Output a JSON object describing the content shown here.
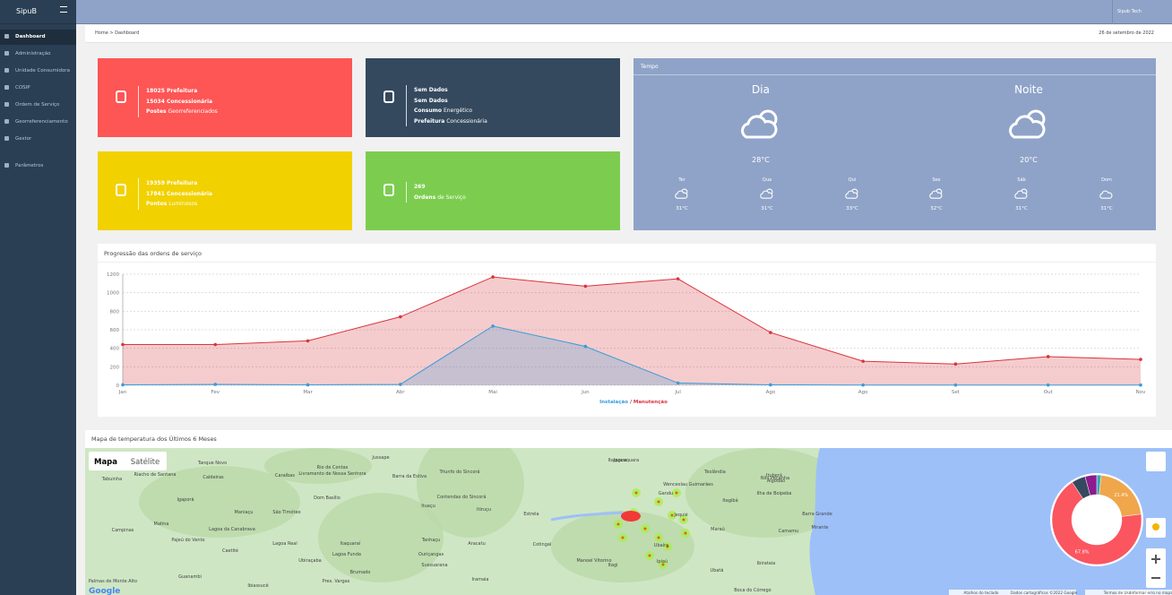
{
  "topbar": {
    "logo": "SipuB",
    "user": "Sipub Tech"
  },
  "sidebar": [
    "Dashboard",
    "Administração",
    "Unidade Consumidora",
    "COSIP",
    "Ordem de Serviço",
    "Georreferenciamento",
    "Gestor",
    "Parâmetros"
  ],
  "breadcrumb": "Home > Dashboard",
  "date": "26 de setembro de 2022",
  "stats": [
    {
      "lines": [
        {
          "bold": "18025 Prefeitura"
        },
        {
          "bold": "15034 Concessionária"
        },
        {
          "bold": "Postes",
          "text": "Georreferenciados"
        }
      ]
    },
    {
      "lines": [
        {
          "bold": "Sem Dados"
        },
        {
          "bold": "Sem Dados"
        },
        {
          "bold": "Consumo",
          "text": "Energético"
        },
        {
          "bold": "Prefeitura",
          "text": "Concessionária"
        }
      ]
    },
    {
      "lines": [
        {
          "bold": "19359 Prefeitura"
        },
        {
          "bold": "17841 Concessionária"
        },
        {
          "bold": "Pontos",
          "text": "Luminosos"
        }
      ]
    },
    {
      "lines": [
        {
          "bold": "269"
        },
        {
          "bold": "Ordens",
          "text": "de Serviço"
        }
      ]
    }
  ],
  "weather": {
    "title": "Tempo",
    "day": {
      "label": "Dia",
      "temp": "28°C"
    },
    "night": {
      "label": "Noite",
      "temp": "20°C"
    },
    "forecast": [
      {
        "day": "Ter",
        "temp": "31°C"
      },
      {
        "day": "Qua",
        "temp": "31°C"
      },
      {
        "day": "Qui",
        "temp": "33°C"
      },
      {
        "day": "Sex",
        "temp": "32°C"
      },
      {
        "day": "Sáb",
        "temp": "31°C"
      },
      {
        "day": "Dom",
        "temp": "31°C"
      }
    ]
  },
  "chart_data": [
    {
      "type": "line",
      "title": "Progressão das ordens de serviço",
      "categories": [
        "Jan",
        "Fev",
        "Mar",
        "Abr",
        "Mai",
        "Jun",
        "Jul",
        "Ago",
        "Ago",
        "Set",
        "Out",
        "Nov"
      ],
      "series": [
        {
          "name": "Manutenção",
          "color": "#d9343a",
          "values": [
            440,
            440,
            480,
            740,
            1170,
            1070,
            1150,
            570,
            260,
            230,
            310,
            280
          ]
        },
        {
          "name": "Instalação",
          "color": "#3b9bd8",
          "values": [
            5,
            10,
            5,
            10,
            640,
            420,
            25,
            5,
            3,
            3,
            3,
            3
          ]
        }
      ],
      "legend_separator": "/",
      "ylim": [
        0,
        1200
      ],
      "yticks": [
        0,
        200,
        400,
        600,
        800,
        1000,
        1200
      ],
      "grid": true
    },
    {
      "type": "pie",
      "values": [
        1.6,
        21.4,
        67.8,
        5.0,
        4.2
      ],
      "value_labels": [
        null,
        "21.4%",
        "67.8%",
        null,
        null
      ],
      "colors": [
        "#3aa6b9",
        "#f0a64a",
        "#fb5560",
        "#34495e",
        "#8e1a8e"
      ]
    }
  ],
  "map": {
    "title": "Mapa de temperatura dos Últimos 6 Meses",
    "buttons": [
      "Mapa",
      "Satélite"
    ],
    "logo": "Google",
    "footer": [
      "Atalhos do teclado",
      "Dados cartográficos ©2022 Google",
      "Termos de Uso",
      "Informar erro no mapa"
    ],
    "labels": [
      "Jussape",
      "Tanque Novo",
      "Rio de Contas",
      "Livramento de Nossa Senhora",
      "Caraíbas",
      "Caldeiras",
      "Tabuinha",
      "Riacho de Santana",
      "Igaporã",
      "Dom Basílio",
      "Barra da Estiva",
      "Triunfo do Sincorá",
      "Contendas do Sincorá",
      "Ituaçu",
      "Maniaçu",
      "São Timóteo",
      "Lagoa da Canabrava",
      "Lagoa Real",
      "Caetité",
      "Pajeú do Vento",
      "Matina",
      "Campinas",
      "Itaquaraí",
      "Lagoa Funda",
      "Tanhaçu",
      "Aracatu",
      "Ouriçangas",
      "Sussuarana",
      "Ubiraçaba",
      "Brumado",
      "Guanambi",
      "Pres. Vargas",
      "Ibiassucê",
      "Palmas de Monte Alto",
      "Estrela",
      "Cotingal",
      "Manoel Vitorino",
      "Itagi",
      "Jequié",
      "Ipiaú",
      "Ibirataia",
      "Ubatã",
      "Itaquara",
      "Jaguaquara",
      "Teolândia",
      "Wenceslau Guimarães",
      "Gandu",
      "Ituberá",
      "Camamu",
      "Nilo Peçanha",
      "Ilha de Boipeba",
      "Barra Grande",
      "Maraú",
      "Algodão",
      "Boca do Córrego",
      "Iramaia",
      "Itiruçu",
      "Ubaíra",
      "Itagibá",
      "Mirante"
    ]
  }
}
